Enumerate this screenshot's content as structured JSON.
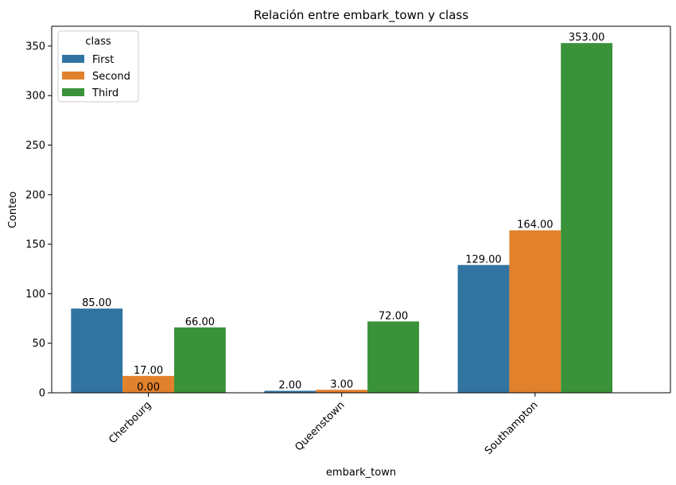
{
  "chart_data": {
    "type": "bar",
    "title": "Relación entre embark_town y class",
    "xlabel": "embark_town",
    "ylabel": "Conteo",
    "categories": [
      "Cherbourg",
      "Queenstown",
      "Southampton"
    ],
    "series": [
      {
        "name": "First",
        "values": [
          85,
          2,
          129
        ],
        "color": "#3274a1"
      },
      {
        "name": "Second",
        "values": [
          17,
          3,
          164
        ],
        "color": "#e1812c"
      },
      {
        "name": "Third",
        "values": [
          66,
          72,
          353
        ],
        "color": "#3a923a"
      }
    ],
    "bar_labels": [
      [
        "85.00",
        "2.00",
        "129.00"
      ],
      [
        "17.00",
        "3.00",
        "164.00"
      ],
      [
        "66.00",
        "72.00",
        "353.00"
      ]
    ],
    "extra_labels": [
      {
        "category": "Cherbourg",
        "series": "Second",
        "text": "0.00"
      }
    ],
    "ylim": [
      0,
      370
    ],
    "yticks": [
      0,
      50,
      100,
      150,
      200,
      250,
      300,
      350
    ],
    "legend": {
      "title": "class",
      "placement": "top-left"
    },
    "grid": false,
    "xtick_rotation": 45
  }
}
